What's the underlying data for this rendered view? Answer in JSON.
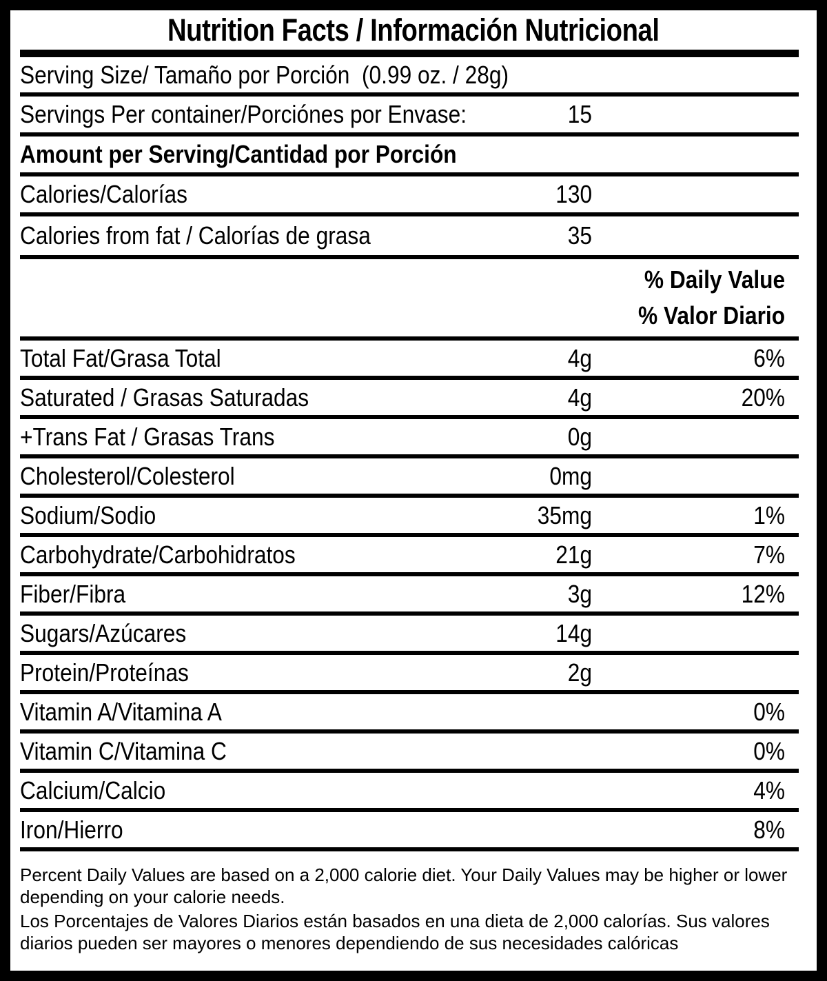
{
  "colors": {
    "ink": "#000000",
    "background": "#ffffff"
  },
  "label": {
    "title": "Nutrition Facts / Información Nutricional",
    "serving_size": "Serving Size/ Tamaño por Porción  (0.99 oz. / 28g)",
    "servings_per_container": {
      "label": "Servings Per container/Porciónes por Envase:",
      "value": "15"
    },
    "amount_per_serving": "Amount per Serving/Cantidad por Porción",
    "calories": {
      "label": "Calories/Calorías",
      "value": "130"
    },
    "calories_from_fat": {
      "label": "Calories from fat / Calorías de grasa",
      "value": "35"
    },
    "daily_value_header": {
      "line_en": "% Daily Value",
      "line_es": "% Valor Diario"
    },
    "nutrients": [
      {
        "label": "Total Fat/Grasa Total",
        "amount": "4g",
        "dv": "6%"
      },
      {
        "label": "Saturated / Grasas Saturadas",
        "amount": "4g",
        "dv": "20%"
      },
      {
        "label": "+Trans Fat / Grasas Trans",
        "amount": "0g",
        "dv": ""
      },
      {
        "label": "Cholesterol/Colesterol",
        "amount": "0mg",
        "dv": ""
      },
      {
        "label": "Sodium/Sodio",
        "amount": "35mg",
        "dv": "1%"
      },
      {
        "label": "Carbohydrate/Carbohidratos",
        "amount": "21g",
        "dv": "7%"
      },
      {
        "label": "Fiber/Fibra",
        "amount": "3g",
        "dv": "12%"
      },
      {
        "label": "Sugars/Azúcares",
        "amount": "14g",
        "dv": ""
      },
      {
        "label": "Protein/Proteínas",
        "amount": "2g",
        "dv": ""
      },
      {
        "label": "Vitamin A/Vitamina A",
        "amount": "",
        "dv": "0%"
      },
      {
        "label": "Vitamin C/Vitamina C",
        "amount": "",
        "dv": "0%"
      },
      {
        "label": "Calcium/Calcio",
        "amount": "",
        "dv": "4%"
      },
      {
        "label": "Iron/Hierro",
        "amount": "",
        "dv": "8%"
      }
    ],
    "footnote_en": "Percent Daily Values are based on a 2,000 calorie diet. Your Daily Values may be higher or lower depending on your calorie needs.",
    "footnote_es": "Los Porcentajes de Valores Diarios están basados en una dieta de 2,000 calorías. Sus valores diarios pueden ser mayores o menores dependiendo de sus necesidades calóricas"
  }
}
